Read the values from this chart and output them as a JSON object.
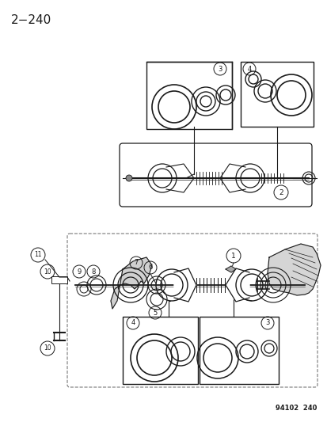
{
  "title": "2−240",
  "footer": "94102  240",
  "background_color": "#ffffff",
  "line_color": "#1a1a1a",
  "fig_width": 4.14,
  "fig_height": 5.33,
  "dpi": 100
}
